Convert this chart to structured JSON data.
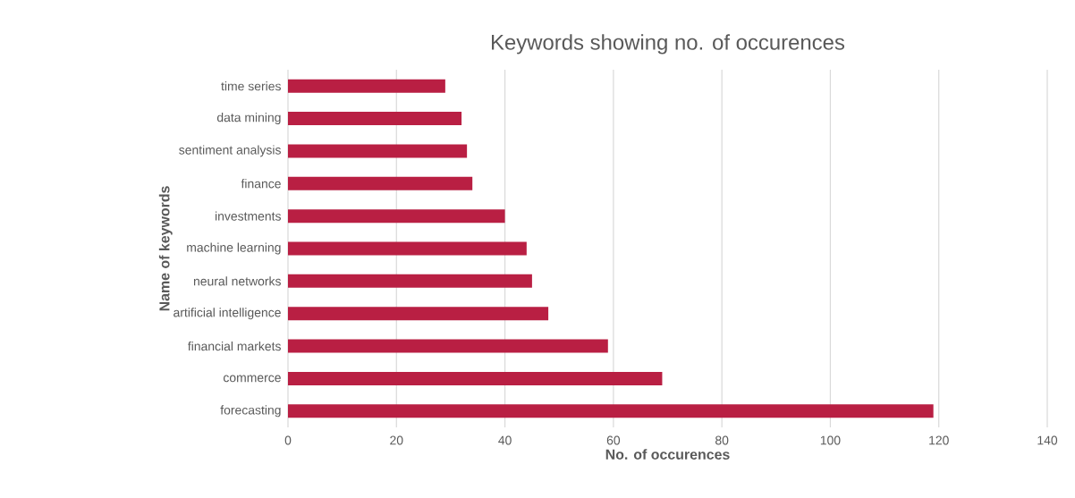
{
  "chart_data": {
    "type": "bar",
    "orientation": "horizontal",
    "title": "Keywords showing no. of occurences",
    "xlabel": "No. of occurences",
    "ylabel": "Name of keywords",
    "categories": [
      "time series",
      "data mining",
      "sentiment analysis",
      "finance",
      "investments",
      "machine learning",
      "neural networks",
      "artificial intelligence",
      "financial markets",
      "commerce",
      "forecasting"
    ],
    "values": [
      29,
      32,
      33,
      34,
      40,
      44,
      45,
      48,
      59,
      69,
      119
    ],
    "color": "#b91f43",
    "xlim": [
      0,
      140
    ],
    "xticks": [
      0,
      20,
      40,
      60,
      80,
      100,
      120,
      140
    ],
    "grid": "x"
  }
}
